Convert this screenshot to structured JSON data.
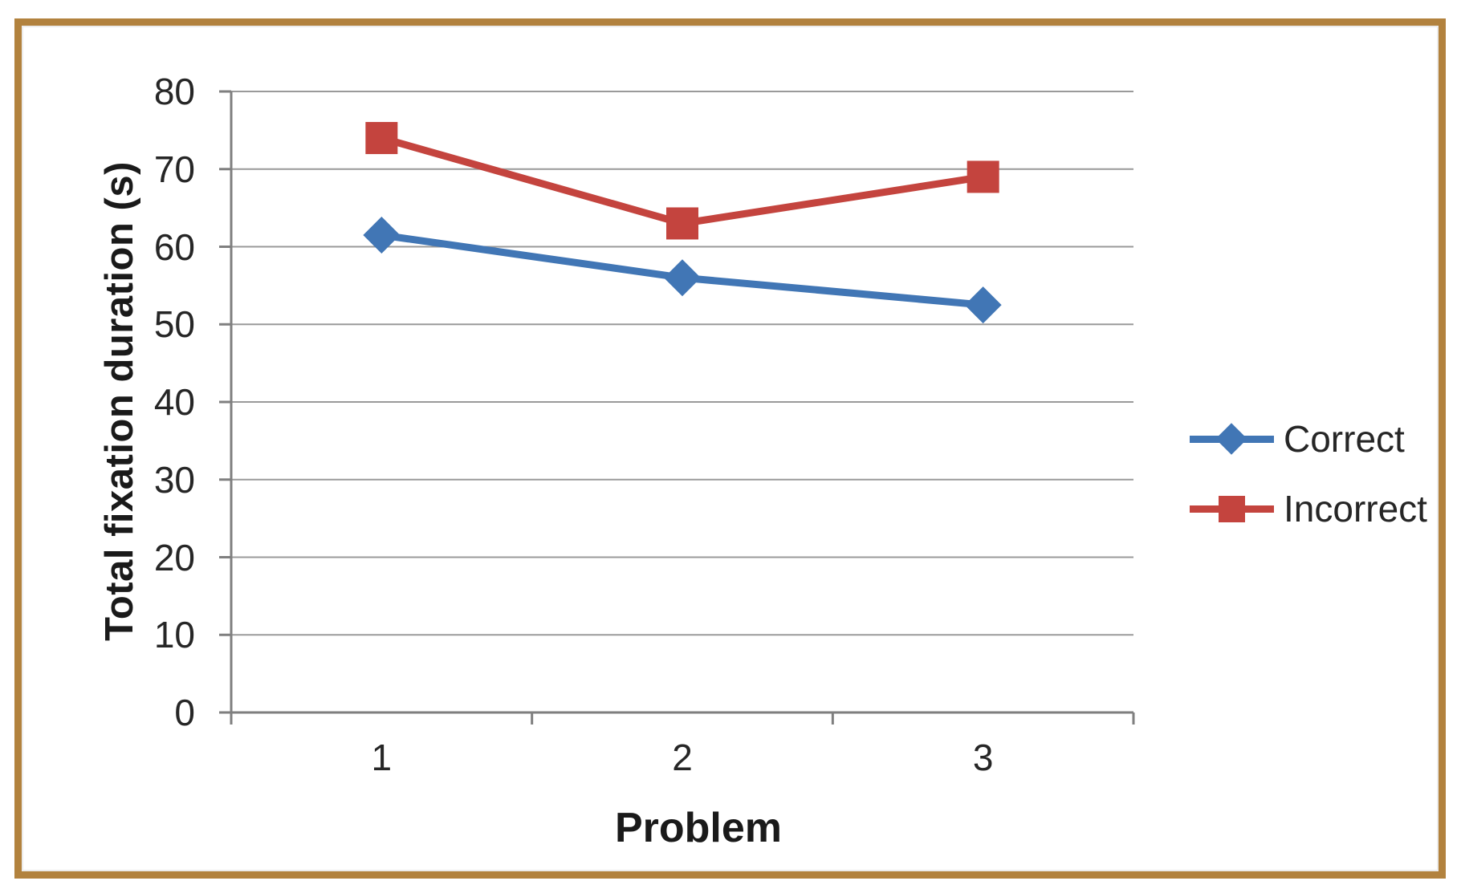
{
  "chart_data": {
    "type": "line",
    "title": "",
    "categories": [
      "1",
      "2",
      "3"
    ],
    "series": [
      {
        "name": "Correct",
        "values": [
          61.5,
          56,
          52.5
        ],
        "color": "#4176B5",
        "marker": "diamond"
      },
      {
        "name": "Incorrect",
        "values": [
          74,
          63,
          69
        ],
        "color": "#C4443E",
        "marker": "square"
      }
    ],
    "xlabel": "Problem",
    "ylabel": "Total fixation duration (s)",
    "ylim": [
      0,
      80
    ],
    "y_ticks": [
      0,
      10,
      20,
      30,
      40,
      50,
      60,
      70,
      80
    ],
    "grid": "horizontal gridlines on",
    "legend_position": "right"
  },
  "frame": {
    "border_color": "#B2823E",
    "background": "#FFFFFF"
  },
  "colors": {
    "grid": "#9A9A9A",
    "axis": "#7F7F7F",
    "tick_text": "#262626",
    "title_text": "#1A1A1A"
  }
}
